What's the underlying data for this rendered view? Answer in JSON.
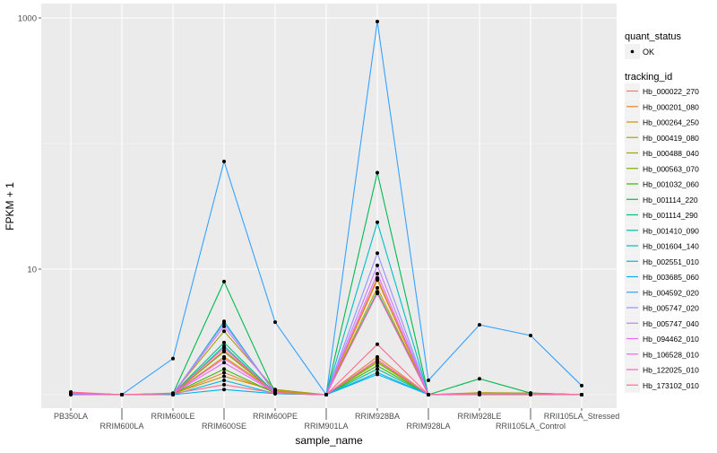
{
  "chart_data": {
    "type": "line",
    "title": "",
    "xlabel": "sample_name",
    "ylabel": "FPKM + 1",
    "yscale": "log10",
    "ylim": [
      0.85,
      1300
    ],
    "yticks": [
      10,
      1000
    ],
    "ytick_labels": [
      "10",
      "1000"
    ],
    "grid": true,
    "legend_placement": "right",
    "categories": [
      "PB350LA",
      "RRIM600LA",
      "RRIM600LE",
      "RRIM600SE",
      "RRIM600PE",
      "RRIM901LA",
      "RRIM928BA",
      "RRIM928LA",
      "RRIM928LE",
      "RRII105LA_Control",
      "RRII105LA_Stressed"
    ],
    "shape_legend": {
      "title": "quant_status",
      "entries": [
        "OK"
      ]
    },
    "color_legend_title": "tracking_id",
    "series": [
      {
        "name": "Hb_000022_270",
        "color": "#F8766D",
        "values": [
          1.04,
          1,
          1.01,
          2.25,
          1.05,
          1,
          8.5,
          1,
          1.01,
          1.01,
          1
        ]
      },
      {
        "name": "Hb_000201_080",
        "color": "#EA8331",
        "values": [
          1.02,
          1,
          1.01,
          1.5,
          1.04,
          1,
          2.0,
          1,
          1.01,
          1.01,
          1
        ]
      },
      {
        "name": "Hb_000264_250",
        "color": "#D89000",
        "values": [
          1.02,
          1,
          1.02,
          2.0,
          1.06,
          1,
          8.2,
          1,
          1.02,
          1.02,
          1
        ]
      },
      {
        "name": "Hb_000419_080",
        "color": "#C09B00",
        "values": [
          1.02,
          1,
          1.02,
          1.4,
          1.08,
          1,
          7.1,
          1,
          1.03,
          1.03,
          1
        ]
      },
      {
        "name": "Hb_000488_040",
        "color": "#A3A500",
        "values": [
          1.02,
          1,
          1.03,
          3.2,
          1.1,
          1,
          1.85,
          1,
          1.04,
          1.03,
          1
        ]
      },
      {
        "name": "Hb_000563_070",
        "color": "#7CAE00",
        "values": [
          1.02,
          1,
          1.02,
          2.2,
          1.04,
          1,
          1.8,
          1,
          1.02,
          1.02,
          1
        ]
      },
      {
        "name": "Hb_001032_060",
        "color": "#39B600",
        "values": [
          1.02,
          1,
          1.02,
          1.6,
          1.03,
          1,
          1.7,
          1,
          1.02,
          1.02,
          1
        ]
      },
      {
        "name": "Hb_001114_220",
        "color": "#00BB4E",
        "values": [
          1.02,
          1,
          1.02,
          7.96,
          1.03,
          1,
          58.6,
          1,
          1.34,
          1.03,
          1
        ]
      },
      {
        "name": "Hb_001114_290",
        "color": "#00BF7D",
        "values": [
          1.02,
          1,
          1.02,
          2.6,
          1.03,
          1,
          6.6,
          1,
          1.02,
          1.02,
          1
        ]
      },
      {
        "name": "Hb_001410_090",
        "color": "#00C1A3",
        "values": [
          1.01,
          1,
          1.01,
          2.44,
          1.02,
          1,
          1.6,
          1,
          1.01,
          1.01,
          1
        ]
      },
      {
        "name": "Hb_001604_140",
        "color": "#00BFC4",
        "values": [
          1.01,
          1,
          1.0,
          3.84,
          1.02,
          1,
          23.6,
          1,
          1.01,
          1.01,
          1
        ]
      },
      {
        "name": "Hb_002551_010",
        "color": "#00BAE0",
        "values": [
          1.01,
          1,
          1.0,
          1.3,
          1.02,
          1,
          1.5,
          1,
          1.01,
          1.01,
          1
        ]
      },
      {
        "name": "Hb_003685_060",
        "color": "#00B0F6",
        "values": [
          1.01,
          1,
          1.0,
          1.1,
          1.02,
          1,
          1.45,
          1,
          1,
          1,
          1
        ]
      },
      {
        "name": "Hb_004592_020",
        "color": "#35A2FF",
        "values": [
          1,
          1,
          1.94,
          72,
          3.78,
          1,
          937,
          1.3,
          3.6,
          2.96,
          1.18
        ]
      },
      {
        "name": "Hb_005747_020",
        "color": "#9590FF",
        "values": [
          1.02,
          1,
          1.02,
          3.7,
          1.04,
          1,
          13.4,
          1,
          1.02,
          1.02,
          1
        ]
      },
      {
        "name": "Hb_005747_040",
        "color": "#C77CFF",
        "values": [
          1.02,
          1,
          1.02,
          3.5,
          1.04,
          1,
          10.7,
          1,
          1.02,
          1.02,
          1
        ]
      },
      {
        "name": "Hb_094462_010",
        "color": "#E76BF3",
        "values": [
          1.02,
          1,
          1.02,
          1.8,
          1.04,
          1,
          9.2,
          1,
          1.02,
          1.02,
          1
        ]
      },
      {
        "name": "Hb_106528_010",
        "color": "#FA62DB",
        "values": [
          1.02,
          1,
          1.02,
          1.94,
          1.04,
          1,
          1.9,
          1,
          1.01,
          1.01,
          1
        ]
      },
      {
        "name": "Hb_122025_010",
        "color": "#FF62BC",
        "values": [
          1.04,
          1,
          1.02,
          2.36,
          1.03,
          1,
          6.4,
          1,
          1.01,
          1.01,
          1
        ]
      },
      {
        "name": "Hb_173102_010",
        "color": "#FF6C91",
        "values": [
          1.05,
          1,
          1.02,
          1.2,
          1.03,
          1,
          2.52,
          1,
          1.01,
          1.01,
          1
        ]
      }
    ]
  }
}
